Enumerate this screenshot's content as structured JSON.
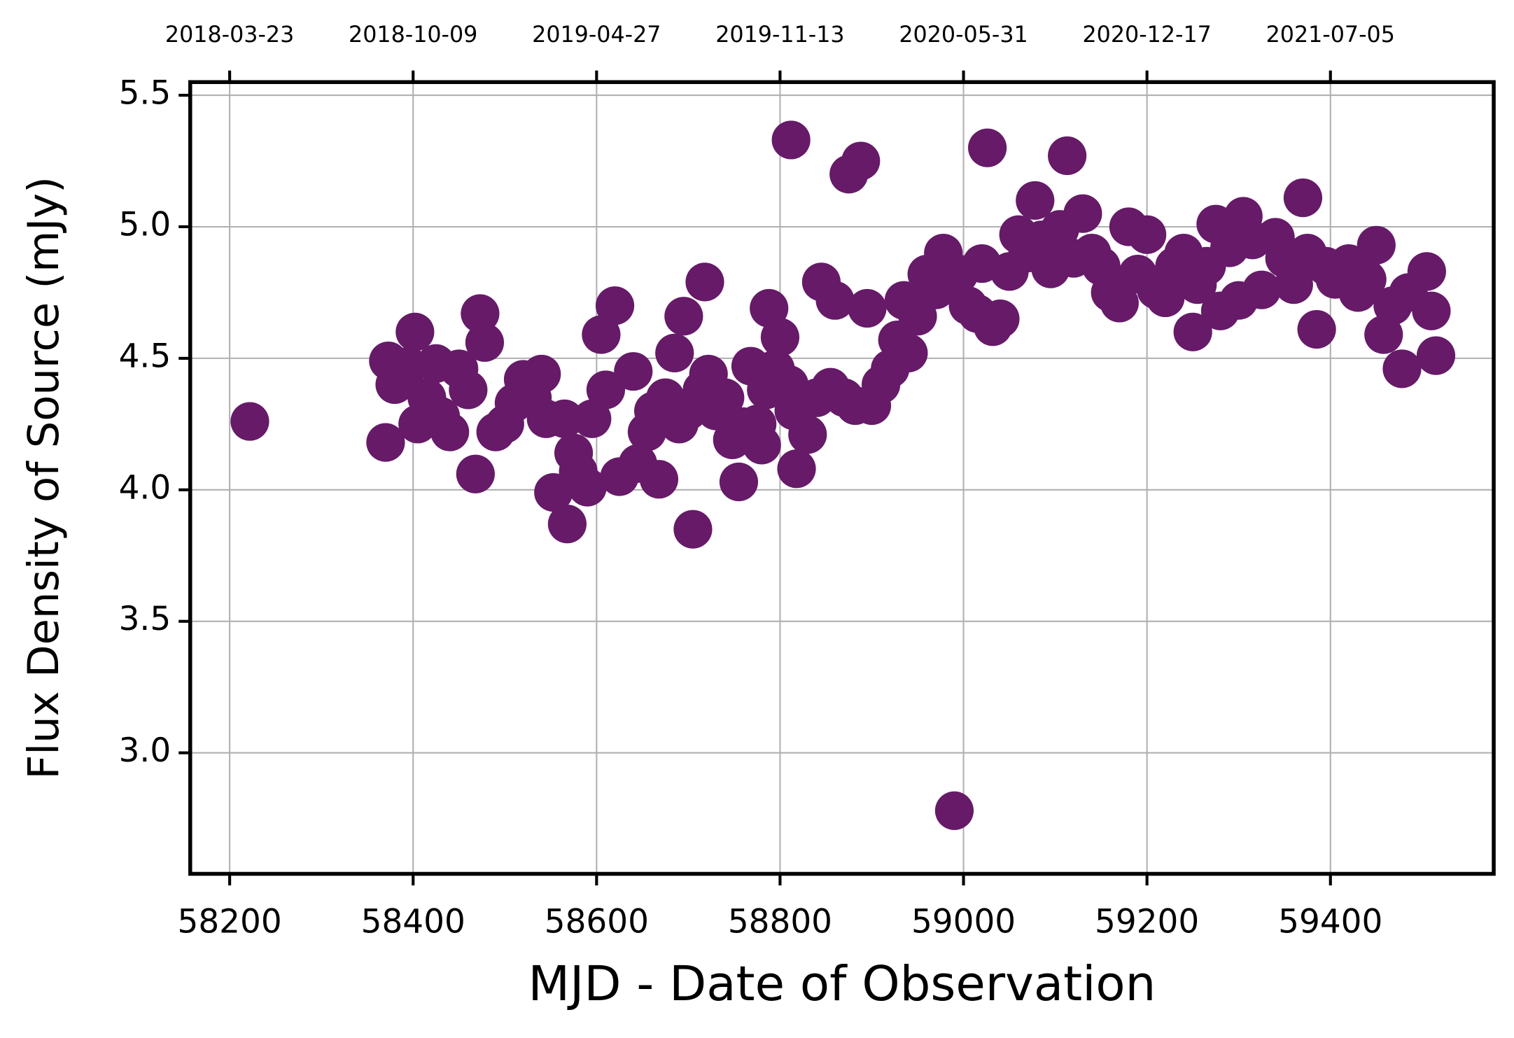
{
  "chart_data": {
    "type": "scatter",
    "xlabel": "MJD - Date of Observation",
    "ylabel": "Flux Density of Source (mJy)",
    "xlim": [
      58157,
      59578
    ],
    "ylim": [
      2.54,
      5.55
    ],
    "xticks": [
      58200,
      58400,
      58600,
      58800,
      59000,
      59200,
      59400
    ],
    "x2ticks": [
      {
        "value": 58200,
        "label": "2018-03-23"
      },
      {
        "value": 58400,
        "label": "2018-10-09"
      },
      {
        "value": 58600,
        "label": "2019-04-27"
      },
      {
        "value": 58800,
        "label": "2019-11-13"
      },
      {
        "value": 59000,
        "label": "2020-05-31"
      },
      {
        "value": 59200,
        "label": "2020-12-17"
      },
      {
        "value": 59400,
        "label": "2021-07-05"
      }
    ],
    "yticks": [
      {
        "value": 3,
        "label": "3.0"
      },
      3.5,
      {
        "value": 4,
        "label": "4.0"
      },
      4.5,
      {
        "value": 5,
        "label": "5.0"
      },
      5.5
    ],
    "grid": true,
    "series": [
      {
        "color": "#661a68",
        "x": [
          58222,
          58370,
          58373,
          58380,
          58395,
          58402,
          58405,
          58415,
          58425,
          58430,
          58440,
          58450,
          58460,
          58468,
          58473,
          58478,
          58490,
          58500,
          58510,
          58520,
          58530,
          58540,
          58545,
          58553,
          58565,
          58568,
          58575,
          58580,
          58590,
          58595,
          58605,
          58610,
          58620,
          58625,
          58640,
          58645,
          58655,
          58662,
          58668,
          58675,
          58685,
          58690,
          58695,
          58700,
          58705,
          58715,
          58718,
          58722,
          58730,
          58740,
          58748,
          58755,
          58760,
          58768,
          58775,
          58780,
          58785,
          58788,
          58795,
          58800,
          58810,
          58812,
          58815,
          58818,
          58830,
          58840,
          58845,
          58855,
          58860,
          58870,
          58875,
          58882,
          58888,
          58895,
          58900,
          58910,
          58920,
          58928,
          58935,
          58940,
          58950,
          58960,
          58970,
          58978,
          58990,
          58995,
          59005,
          59015,
          59020,
          59026,
          59032,
          59040,
          59050,
          59060,
          59070,
          59078,
          59085,
          59095,
          59105,
          59113,
          59120,
          59130,
          59140,
          59150,
          59160,
          59170,
          59180,
          59190,
          59200,
          59210,
          59220,
          59230,
          59240,
          59250,
          59255,
          59265,
          59275,
          59280,
          59290,
          59300,
          59305,
          59315,
          59325,
          59340,
          59350,
          59360,
          59370,
          59375,
          59385,
          59395,
          59405,
          59420,
          59430,
          59440,
          59450,
          59458,
          59468,
          59478,
          59485,
          59505,
          59510,
          59515
        ],
        "values": [
          4.26,
          4.18,
          4.49,
          4.4,
          4.47,
          4.6,
          4.25,
          4.35,
          4.48,
          4.28,
          4.22,
          4.46,
          4.38,
          4.06,
          4.67,
          4.56,
          4.22,
          4.25,
          4.33,
          4.42,
          4.35,
          4.44,
          4.27,
          3.99,
          4.27,
          3.87,
          4.14,
          4.07,
          4.01,
          4.27,
          4.59,
          4.38,
          4.7,
          4.05,
          4.45,
          4.1,
          4.22,
          4.3,
          4.04,
          4.35,
          4.52,
          4.25,
          4.66,
          4.3,
          3.85,
          4.38,
          4.79,
          4.44,
          4.3,
          4.35,
          4.19,
          4.03,
          4.24,
          4.47,
          4.25,
          4.17,
          4.38,
          4.69,
          4.46,
          4.58,
          4.4,
          5.33,
          4.3,
          4.08,
          4.21,
          4.35,
          4.79,
          4.39,
          4.72,
          4.35,
          5.2,
          4.32,
          5.25,
          4.69,
          4.32,
          4.4,
          4.46,
          4.57,
          4.72,
          4.52,
          4.66,
          4.82,
          4.76,
          4.9,
          2.78,
          4.82,
          4.7,
          4.67,
          4.86,
          5.3,
          4.62,
          4.65,
          4.83,
          4.97,
          4.9,
          5.1,
          4.95,
          4.84,
          4.99,
          5.27,
          4.88,
          5.05,
          4.9,
          4.85,
          4.75,
          4.71,
          5.0,
          4.82,
          4.97,
          4.76,
          4.73,
          4.85,
          4.9,
          4.6,
          4.78,
          4.85,
          5.01,
          4.68,
          4.92,
          4.72,
          5.04,
          4.95,
          4.76,
          4.96,
          4.88,
          4.78,
          5.11,
          4.9,
          4.61,
          4.85,
          4.8,
          4.86,
          4.75,
          4.8,
          4.93,
          4.59,
          4.7,
          4.46,
          4.75,
          4.83,
          4.68,
          4.51
        ]
      }
    ]
  }
}
